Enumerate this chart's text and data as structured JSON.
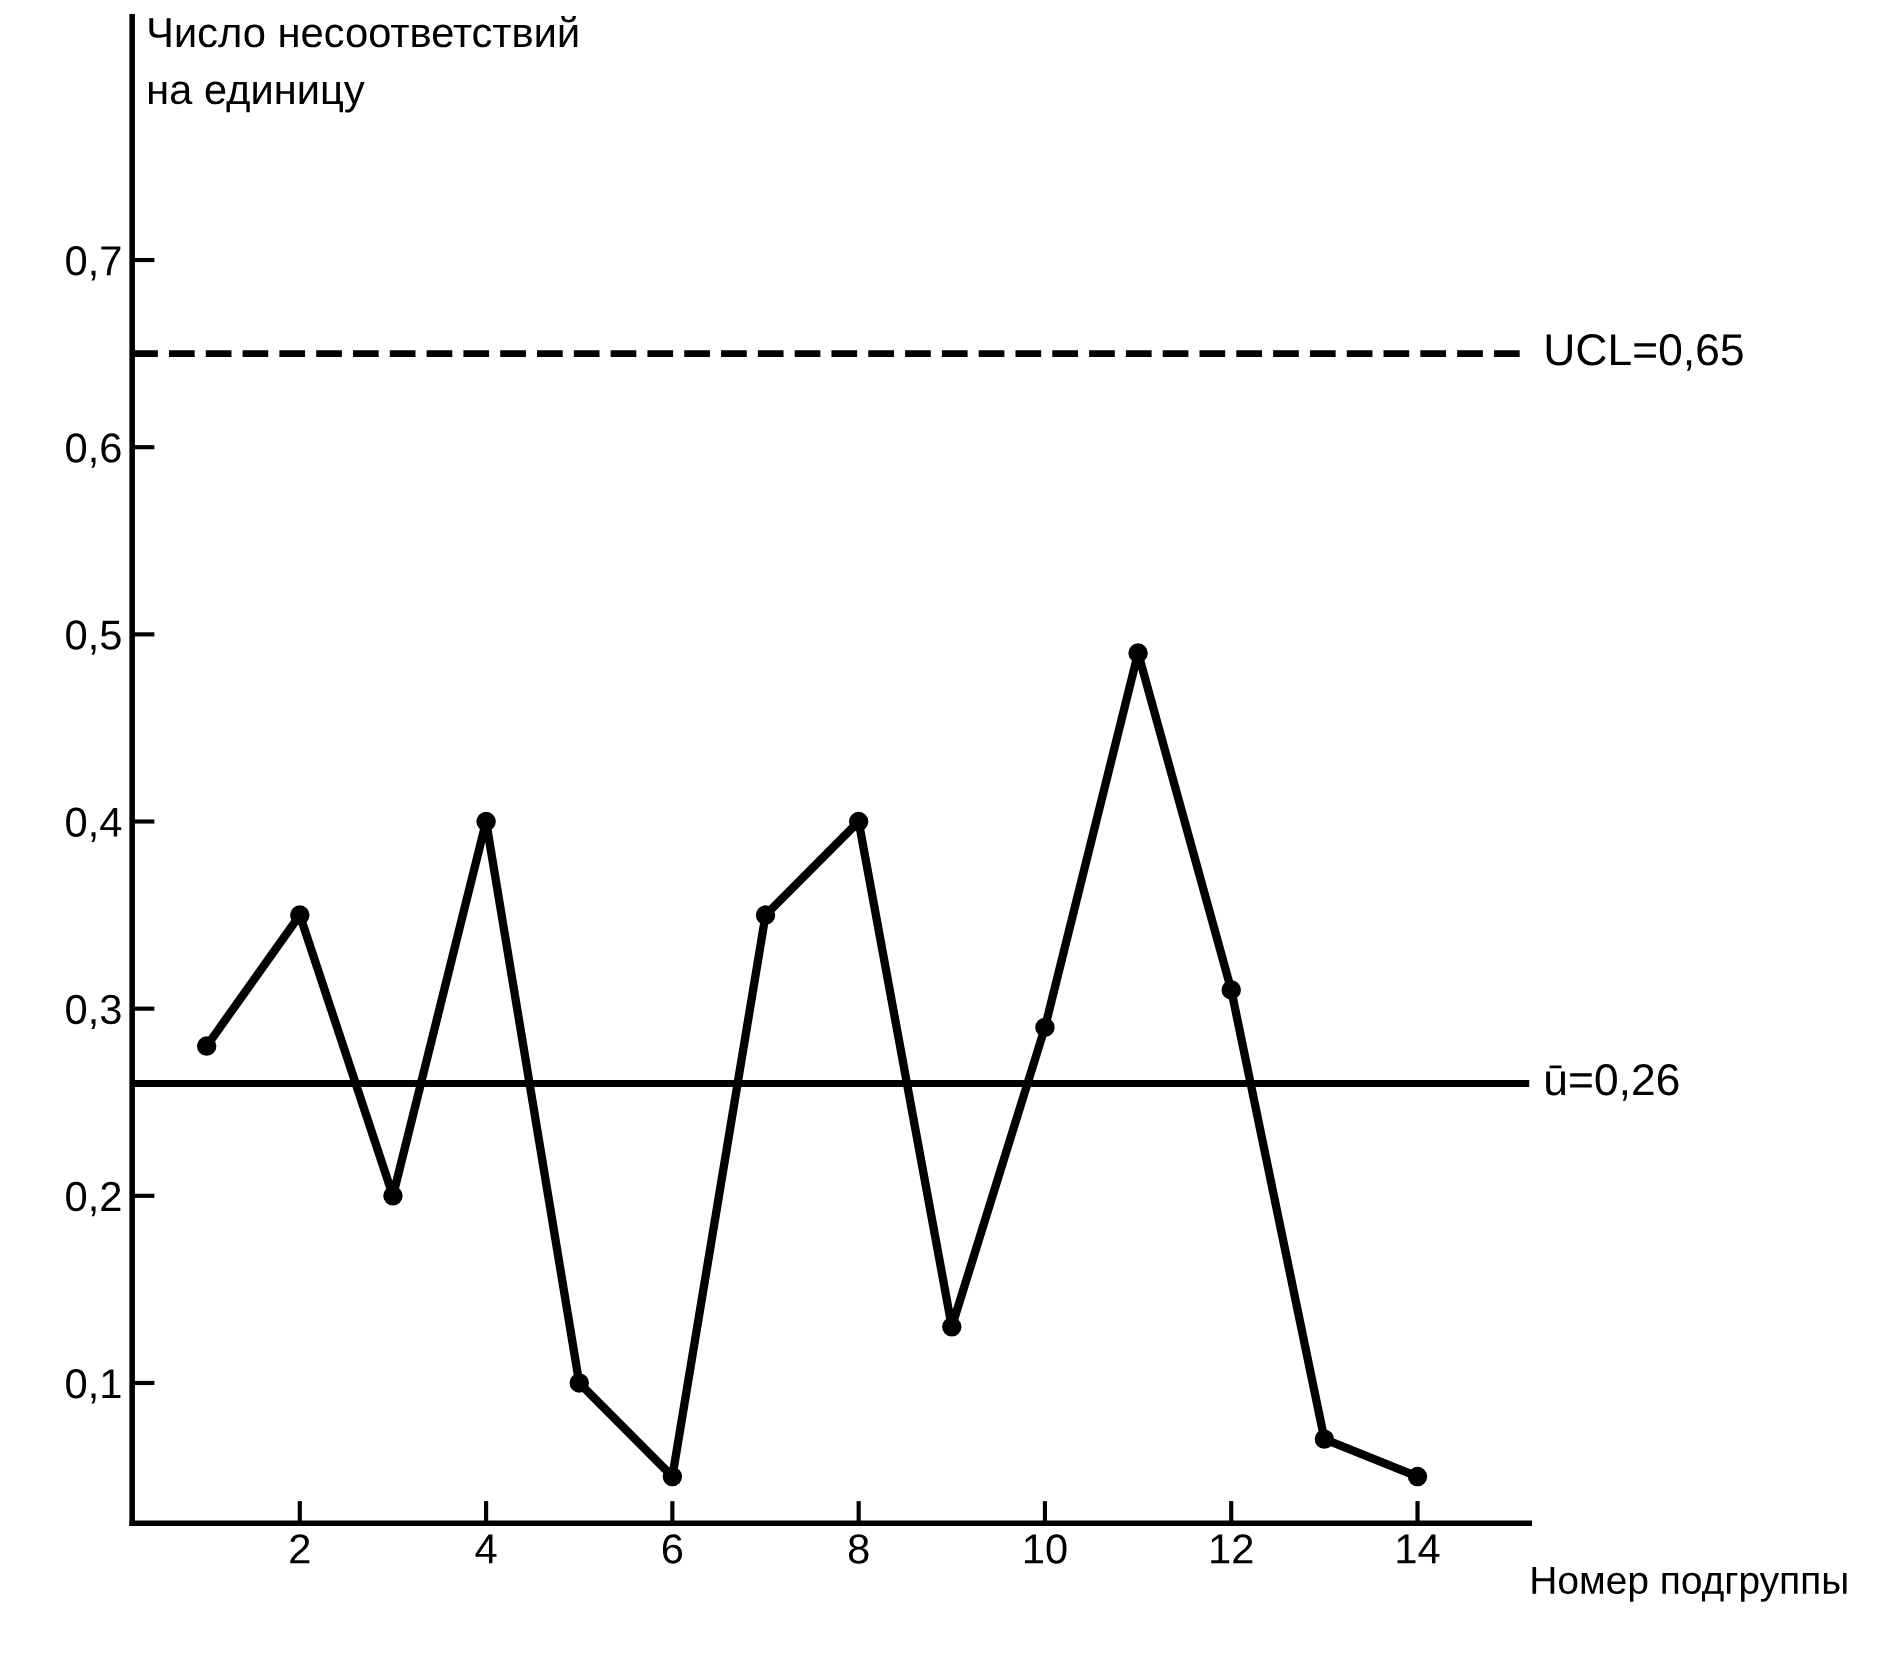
{
  "chart_data": {
    "type": "line",
    "ylabel": "Число несоответствий\nна единицу",
    "xlabel": "Номер подгруппы",
    "x": [
      1,
      2,
      3,
      4,
      5,
      6,
      7,
      8,
      9,
      10,
      11,
      12,
      13,
      14
    ],
    "series": [
      {
        "color": "#000000",
        "values": [
          0.28,
          0.35,
          0.2,
          0.4,
          0.1,
          0.05,
          0.35,
          0.4,
          0.13,
          0.29,
          0.49,
          0.31,
          0.07,
          0.05
        ]
      }
    ],
    "marker": "circle",
    "line_style": "solid",
    "grid": false,
    "legend": false,
    "xlim": [
      0.2,
      15.2
    ],
    "ylim": [
      0.025,
      0.83
    ],
    "xticks": [
      2,
      4,
      6,
      8,
      10,
      12,
      14
    ],
    "yticks": [
      {
        "value": 0.1,
        "label": "0,1"
      },
      {
        "value": 0.2,
        "label": "0,2"
      },
      {
        "value": 0.3,
        "label": "0,3"
      },
      {
        "value": 0.4,
        "label": "0,4"
      },
      {
        "value": 0.5,
        "label": "0,5"
      },
      {
        "value": 0.6,
        "label": "0,6"
      },
      {
        "value": 0.7,
        "label": "0,7"
      }
    ],
    "ref_lines": [
      {
        "axis": "y",
        "value": 0.65,
        "label": "UCL=0,65",
        "line_style": "dashed",
        "color": "#000000"
      },
      {
        "axis": "y",
        "value": 0.26,
        "label": "ū=0,26",
        "line_style": "solid",
        "color": "#000000"
      }
    ]
  }
}
